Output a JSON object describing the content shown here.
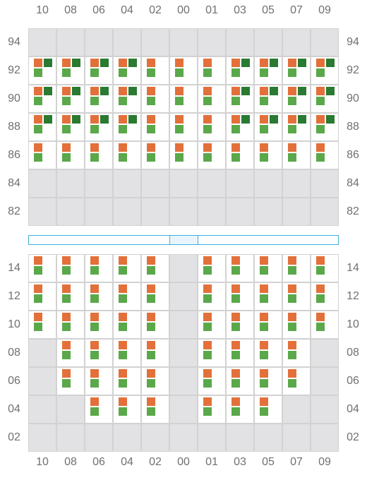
{
  "columns": [
    "10",
    "08",
    "06",
    "04",
    "02",
    "00",
    "01",
    "03",
    "05",
    "07",
    "09"
  ],
  "upper_rows": [
    "94",
    "92",
    "90",
    "88",
    "86",
    "84",
    "82"
  ],
  "lower_rows": [
    "14",
    "12",
    "10",
    "08",
    "06",
    "04",
    "02"
  ],
  "colors": {
    "marker_orange": "#e3703a",
    "marker_light_green": "#5aa84a",
    "marker_dark_green": "#2a7a32",
    "empty_cell": "#e2e2e4",
    "cell_border": "#d2d2d2",
    "label": "#707070",
    "band_border": "#3eaee0",
    "band_mid_fill": "#e9f5fb"
  },
  "legend_codes": {
    "o": "orange square",
    "g": "light green square",
    "d": "dark green square",
    "-": "empty grey cell"
  },
  "upper_grid": {
    "94": [
      "-",
      "-",
      "-",
      "-",
      "-",
      "-",
      "-",
      "-",
      "-",
      "-",
      "-"
    ],
    "92": [
      "ogd",
      "ogd",
      "ogd",
      "ogd",
      "og",
      "og",
      "og",
      "ogd",
      "ogd",
      "ogd",
      "ogd"
    ],
    "90": [
      "ogd",
      "ogd",
      "ogd",
      "ogd",
      "og",
      "og",
      "og",
      "ogd",
      "ogd",
      "ogd",
      "ogd"
    ],
    "88": [
      "ogd",
      "ogd",
      "ogd",
      "ogd",
      "og",
      "og",
      "og",
      "ogd",
      "ogd",
      "ogd",
      "ogd"
    ],
    "86": [
      "og",
      "og",
      "og",
      "og",
      "og",
      "og",
      "og",
      "og",
      "og",
      "og",
      "og"
    ],
    "84": [
      "-",
      "-",
      "-",
      "-",
      "-",
      "-",
      "-",
      "-",
      "-",
      "-",
      "-"
    ],
    "82": [
      "-",
      "-",
      "-",
      "-",
      "-",
      "-",
      "-",
      "-",
      "-",
      "-",
      "-"
    ]
  },
  "lower_grid": {
    "14": [
      "og",
      "og",
      "og",
      "og",
      "og",
      "-",
      "og",
      "og",
      "og",
      "og",
      "og"
    ],
    "12": [
      "og",
      "og",
      "og",
      "og",
      "og",
      "-",
      "og",
      "og",
      "og",
      "og",
      "og"
    ],
    "10": [
      "og",
      "og",
      "og",
      "og",
      "og",
      "-",
      "og",
      "og",
      "og",
      "og",
      "og"
    ],
    "08": [
      "-",
      "og",
      "og",
      "og",
      "og",
      "-",
      "og",
      "og",
      "og",
      "og",
      "-"
    ],
    "06": [
      "-",
      "og",
      "og",
      "og",
      "og",
      "-",
      "og",
      "og",
      "og",
      "og",
      "-"
    ],
    "04": [
      "-",
      "-",
      "og",
      "og",
      "og",
      "-",
      "og",
      "og",
      "og",
      "-",
      "-"
    ],
    "02": [
      "-",
      "-",
      "-",
      "-",
      "-",
      "-",
      "-",
      "-",
      "-",
      "-",
      "-"
    ]
  }
}
